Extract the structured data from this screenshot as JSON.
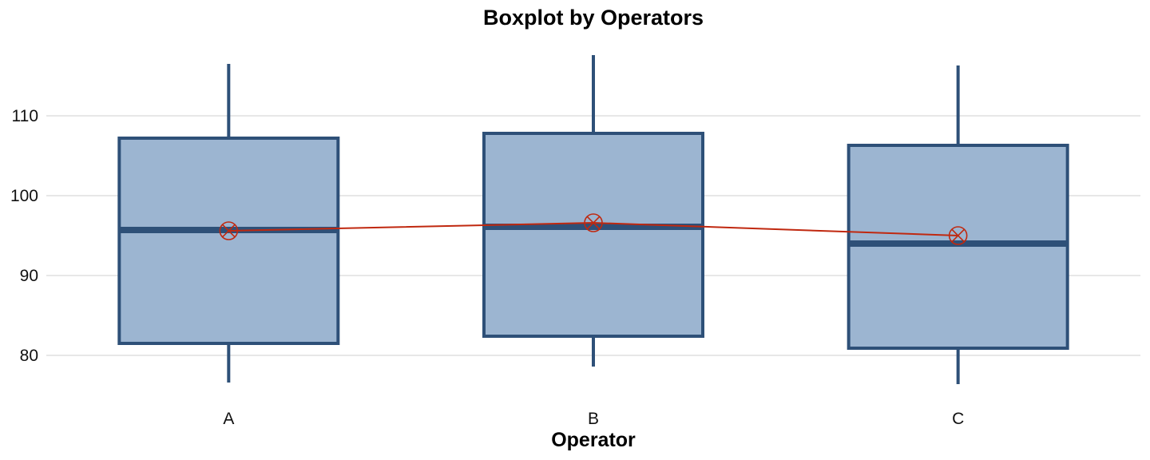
{
  "chart_data": {
    "type": "boxplot",
    "title": "Boxplot by Operators",
    "xlabel": "Operator",
    "ylabel": "",
    "categories": [
      "A",
      "B",
      "C"
    ],
    "boxes": [
      {
        "category": "A",
        "whisker_low": 76.6,
        "q1": 81.5,
        "median": 95.7,
        "q3": 107.2,
        "whisker_high": 116.5,
        "mean": 95.6
      },
      {
        "category": "B",
        "whisker_low": 78.6,
        "q1": 82.4,
        "median": 96.1,
        "q3": 107.8,
        "whisker_high": 117.6,
        "mean": 96.6
      },
      {
        "category": "C",
        "whisker_low": 76.4,
        "q1": 80.9,
        "median": 94.0,
        "q3": 106.3,
        "whisker_high": 116.3,
        "mean": 95.0
      }
    ],
    "y_ticks": [
      80,
      90,
      100,
      110
    ],
    "ylim": [
      75,
      118.3
    ],
    "grid": true,
    "legend": false,
    "colors": {
      "box_fill": "#9cb5d1",
      "box_stroke": "#2e5078",
      "mean": "#c0280f",
      "grid": "#cfcfcf"
    }
  }
}
